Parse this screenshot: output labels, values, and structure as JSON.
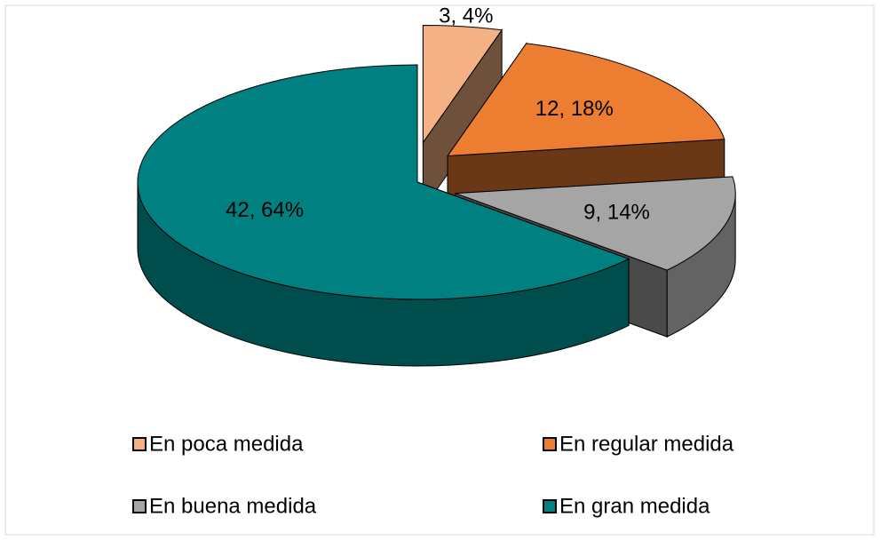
{
  "chart_data": {
    "type": "pie3d",
    "categories": [
      "En poca medida",
      "En regular medida",
      "En buena medida",
      "En gran medida"
    ],
    "values": [
      3,
      12,
      9,
      42
    ],
    "value_labels": [
      "3, 4%",
      "12, 18%",
      "9, 14%",
      "42, 64%"
    ],
    "colors": [
      "#f4b183",
      "#ed7d31",
      "#a5a5a5",
      "#008080"
    ],
    "legend": "bottom"
  }
}
